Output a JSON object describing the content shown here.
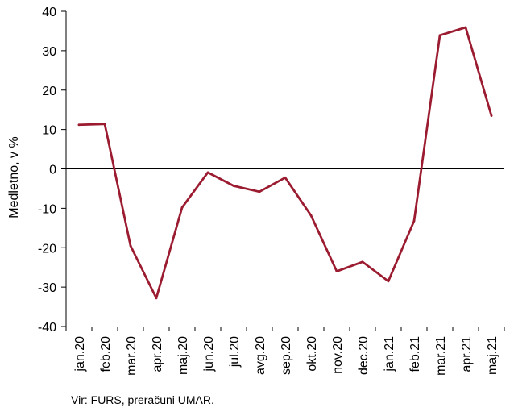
{
  "chart_data": {
    "type": "line",
    "title": "",
    "xlabel": "",
    "ylabel": "Medletno, v %",
    "categories": [
      "jan.20",
      "feb.20",
      "mar.20",
      "apr.20",
      "maj.20",
      "jun.20",
      "jul.20",
      "avg.20",
      "sep.20",
      "okt.20",
      "nov.20",
      "dec.20",
      "jan.21",
      "feb.21",
      "mar.21",
      "apr.21",
      "maj.21"
    ],
    "series": [
      {
        "values": [
          11.2,
          11.4,
          -19.5,
          -32.8,
          -9.8,
          -0.9,
          -4.3,
          -5.8,
          -2.2,
          -11.8,
          -26.0,
          -23.6,
          -28.5,
          -13.2,
          33.9,
          35.9,
          13.5
        ],
        "color": "#9b1b30"
      }
    ],
    "ylim": [
      -40,
      40
    ],
    "yticks": [
      -40,
      -30,
      -20,
      -10,
      0,
      10,
      20,
      30,
      40
    ],
    "grid": false,
    "legend": "none",
    "line_color": "#9b1b30"
  },
  "footer": {
    "source": "Vir: FURS, preračuni UMAR."
  }
}
